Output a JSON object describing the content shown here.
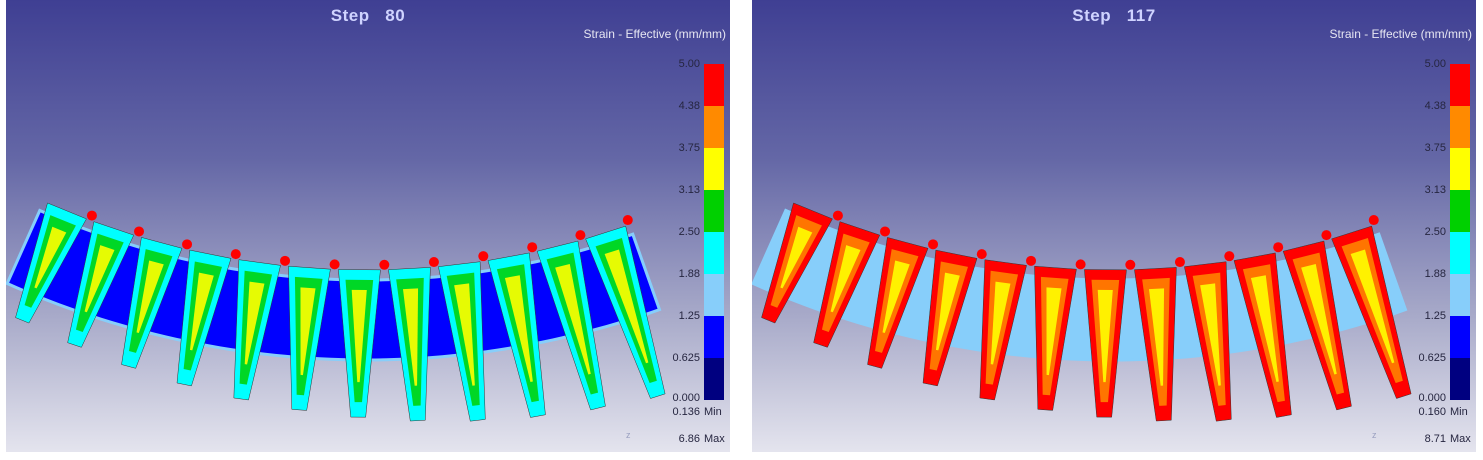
{
  "legend": {
    "title": "Strain - Effective (mm/mm)",
    "ticks": [
      "5.00",
      "4.38",
      "3.75",
      "3.13",
      "2.50",
      "1.88",
      "1.25",
      "0.625",
      "0.000"
    ],
    "colors": [
      "#ff0000",
      "#ff8a00",
      "#ffff00",
      "#00d000",
      "#00ffff",
      "#87cefa",
      "#0000ff",
      "#000080"
    ],
    "min_label": "Min",
    "max_label": "Max",
    "axis_glyph": "z"
  },
  "panels": [
    {
      "title": "Step   80",
      "min_value": "0.136",
      "max_value": "6.86",
      "tooth_color_bands": [
        "#00ffff",
        "#00d000",
        "#ffff00",
        "#00d000"
      ],
      "hot_tip": "#ff0000"
    },
    {
      "title": "Step   117",
      "min_value": "0.160",
      "max_value": "8.71",
      "tooth_color_bands": [
        "#ff0000",
        "#ff8a00",
        "#ffff00",
        "#00d000"
      ],
      "hot_tip": "#ff0000"
    }
  ]
}
